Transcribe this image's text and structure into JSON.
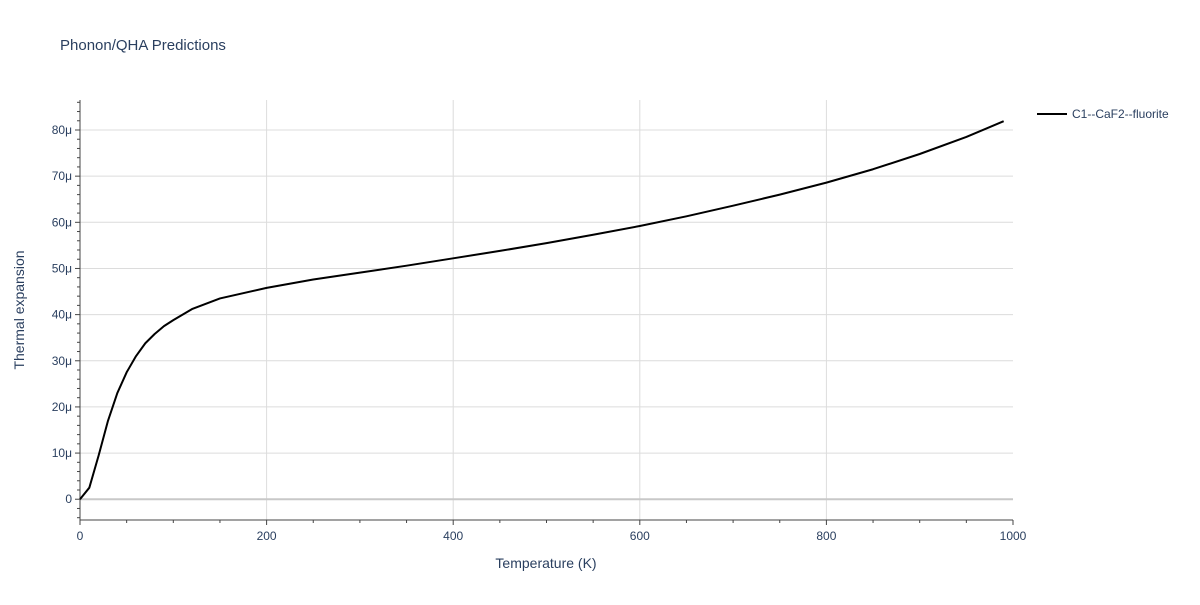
{
  "chart_data": {
    "type": "line",
    "title": "Phonon/QHA Predictions",
    "xlabel": "Temperature (K)",
    "ylabel": "Thermal expansion",
    "xlim": [
      0,
      1000
    ],
    "ylim": [
      -4.5e-06,
      8.65e-05
    ],
    "grid": true,
    "legend_position": "top-right",
    "x_ticks": [
      0,
      200,
      400,
      600,
      800,
      1000
    ],
    "x_tick_labels": [
      "0",
      "200",
      "400",
      "600",
      "800",
      "1000"
    ],
    "y_ticks": [
      0,
      1e-05,
      2e-05,
      3e-05,
      4e-05,
      5e-05,
      6e-05,
      7e-05,
      8e-05
    ],
    "y_tick_labels": [
      "0",
      "10μ",
      "20μ",
      "30μ",
      "40μ",
      "50μ",
      "60μ",
      "70μ",
      "80μ"
    ],
    "series": [
      {
        "name": "C1--CaF2--fluorite",
        "color": "#000000",
        "x": [
          0,
          10,
          20,
          30,
          40,
          50,
          60,
          70,
          80,
          90,
          100,
          120,
          150,
          200,
          250,
          300,
          350,
          400,
          450,
          500,
          550,
          600,
          650,
          700,
          750,
          800,
          850,
          900,
          950,
          990
        ],
        "y": [
          0,
          2.5e-06,
          9.5e-06,
          1.7e-05,
          2.3e-05,
          2.75e-05,
          3.1e-05,
          3.38e-05,
          3.58e-05,
          3.75e-05,
          3.88e-05,
          4.12e-05,
          4.35e-05,
          4.58e-05,
          4.76e-05,
          4.91e-05,
          5.06e-05,
          5.22e-05,
          5.38e-05,
          5.55e-05,
          5.73e-05,
          5.92e-05,
          6.13e-05,
          6.36e-05,
          6.6e-05,
          6.86e-05,
          7.15e-05,
          7.48e-05,
          7.85e-05,
          8.19e-05
        ]
      }
    ]
  }
}
